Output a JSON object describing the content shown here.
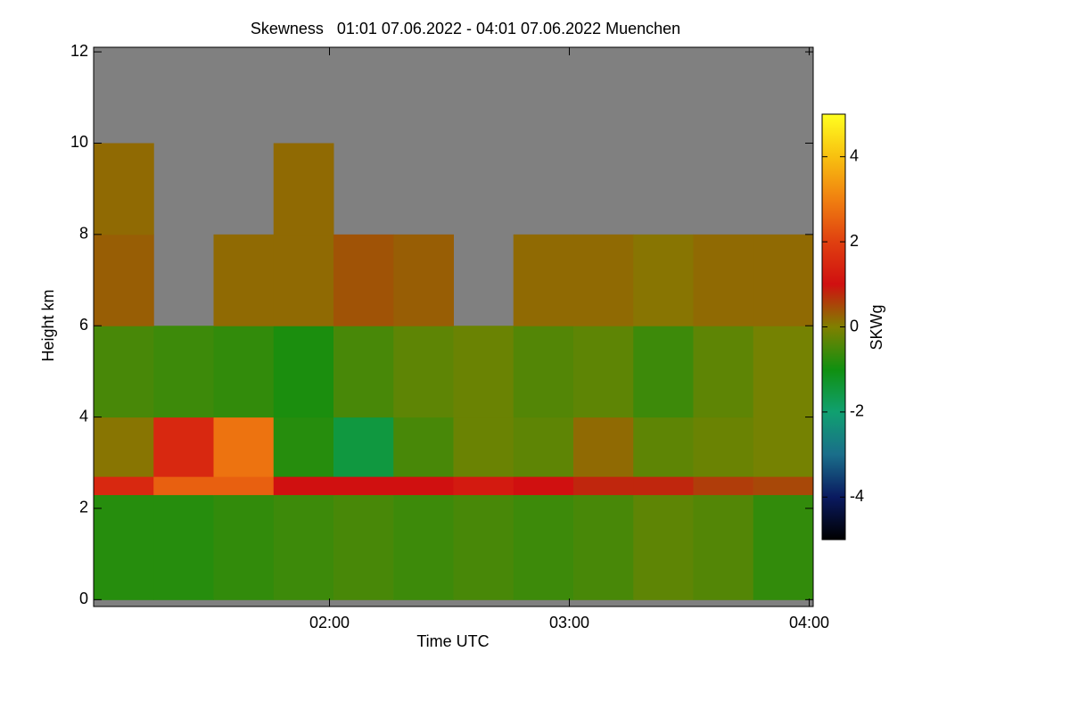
{
  "chart_data": {
    "type": "heatmap",
    "title": "Skewness   01:01 07.06.2022 - 04:01 07.06.2022 Muenchen",
    "x_label": "Time UTC",
    "y_label": "Height km",
    "colorbar_label": "SKWg",
    "xbins": [
      61,
      76,
      91,
      106,
      121,
      136,
      151,
      166,
      181,
      196,
      211,
      226,
      241
    ],
    "ybins": [
      0,
      2.3,
      2.7,
      4,
      6,
      8,
      10,
      12.1
    ],
    "values": [
      [
        -0.8,
        -0.8,
        -0.7,
        -0.6,
        -0.5,
        -0.6,
        -0.5,
        -0.6,
        -0.5,
        -0.3,
        -0.4,
        -0.7
      ],
      [
        1.5,
        2.5,
        2.5,
        1,
        1,
        1,
        1.2,
        1,
        0.8,
        0.8,
        0.6,
        0.5
      ],
      [
        0.1,
        1.5,
        2.8,
        -0.8,
        -1.5,
        -0.5,
        -0.2,
        -0.3,
        0.2,
        -0.3,
        -0.2,
        -0.1
      ],
      [
        -0.5,
        -0.6,
        -0.7,
        -0.9,
        -0.5,
        -0.3,
        -0.2,
        -0.4,
        -0.3,
        -0.6,
        -0.3,
        -0.1
      ],
      [
        0.3,
        null,
        0.2,
        0.2,
        0.4,
        0.3,
        null,
        0.2,
        0.2,
        0.1,
        0.2,
        0.2
      ],
      [
        0.2,
        null,
        null,
        0.2,
        null,
        null,
        null,
        null,
        null,
        null,
        null,
        null
      ],
      [
        null,
        null,
        null,
        null,
        null,
        null,
        null,
        null,
        null,
        null,
        null,
        null
      ]
    ],
    "xlim": [
      61,
      241
    ],
    "xticks": [
      {
        "value": 120,
        "label": "02:00"
      },
      {
        "value": 180,
        "label": "03:00"
      },
      {
        "value": 240,
        "label": "04:00"
      }
    ],
    "ylim": [
      -0.15,
      12.1
    ],
    "yticks": [
      0,
      2,
      4,
      6,
      8,
      10,
      12
    ],
    "clim": [
      -5,
      5
    ],
    "cticks": [
      -4,
      -2,
      0,
      2,
      4
    ],
    "colorscale": [
      "#000000",
      "#0a1a60",
      "#1a6e8a",
      "#10a070",
      "#109010",
      "#808000",
      "#d01010",
      "#e04010",
      "#f08010",
      "#f8c010",
      "#ffff20"
    ],
    "nodata_color": "#808080"
  }
}
